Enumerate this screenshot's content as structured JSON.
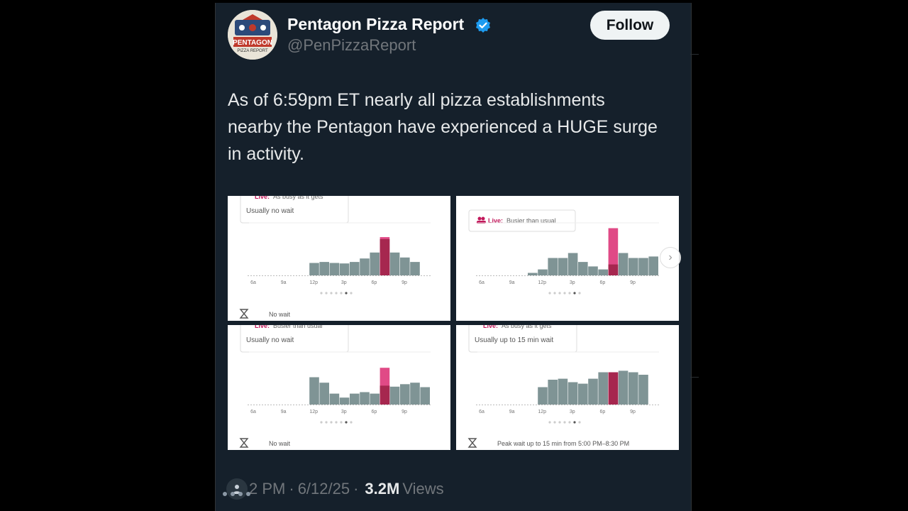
{
  "account": {
    "name": "Pentagon Pizza Report",
    "handle": "@PenPizzaReport",
    "avatar_text_main": "PENTAGON",
    "avatar_text_sub": "PIZZA REPORT"
  },
  "follow_label": "Follow",
  "tweet_text": "As of 6:59pm ET nearly all pizza establishments nearby the Pentagon have experienced a HUGE surge in activity.",
  "footer": {
    "time": "2 PM",
    "separator": "·",
    "date": "6/12/25",
    "views_count": "3.2M",
    "views_label": "Views"
  },
  "colors": {
    "bar": "#7f9495",
    "live_bar": "#e04a86",
    "live_overlap": "#a6274f",
    "live_label": "#c2185b",
    "verified": "#1d9bf0"
  },
  "icons": [
    "verified-badge-icon",
    "live-people-icon",
    "hourglass-icon",
    "person-icon",
    "chevron-right-icon"
  ],
  "charts": [
    {
      "label": "Live:",
      "status": "As busy as it gets",
      "subtitle": "Usually no wait",
      "ticks": [
        "6a",
        "9a",
        "12p",
        "3p",
        "6p",
        "9p"
      ],
      "bottom_note": "No wait",
      "live_index": 13,
      "usual": [
        0,
        0,
        0,
        0,
        0,
        0,
        0.25,
        0.27,
        0.25,
        0.24,
        0.27,
        0.34,
        0.46,
        0.73,
        0.46,
        0.36,
        0.27,
        0
      ],
      "live_value": 0.77
    },
    {
      "label": "Live:",
      "status": "Busier than usual",
      "subtitle": "",
      "ticks": [
        "6a",
        "9a",
        "12p",
        "3p",
        "6p",
        "9p"
      ],
      "bottom_note": "",
      "live_index": 13,
      "usual": [
        0,
        0,
        0,
        0,
        0,
        0.05,
        0.12,
        0.35,
        0.35,
        0.45,
        0.27,
        0.18,
        0.12,
        0.22,
        0.45,
        0.35,
        0.35,
        0.38
      ],
      "live_value": 0.95
    },
    {
      "label": "Live:",
      "status": "Busier than usual",
      "subtitle": "Usually no wait",
      "ticks": [
        "6a",
        "9a",
        "12p",
        "3p",
        "6p",
        "9p"
      ],
      "bottom_note": "No wait",
      "live_index": 13,
      "usual": [
        0,
        0,
        0,
        0,
        0,
        0,
        0.55,
        0.44,
        0.22,
        0.14,
        0.22,
        0.25,
        0.22,
        0.38,
        0.36,
        0.41,
        0.44,
        0.35
      ],
      "live_value": 0.74
    },
    {
      "label": "Live:",
      "status": "As busy as it gets",
      "subtitle": "Usually up to 15 min wait",
      "ticks": [
        "6a",
        "9a",
        "12p",
        "3p",
        "6p",
        "9p"
      ],
      "bottom_note": "Peak wait up to 15 min from 5:00 PM–8:30 PM",
      "live_index": 13,
      "usual": [
        0,
        0,
        0,
        0,
        0,
        0,
        0.35,
        0.5,
        0.52,
        0.45,
        0.42,
        0.52,
        0.65,
        0.65,
        0.68,
        0.65,
        0.6,
        0
      ],
      "live_value": 0.65
    }
  ]
}
